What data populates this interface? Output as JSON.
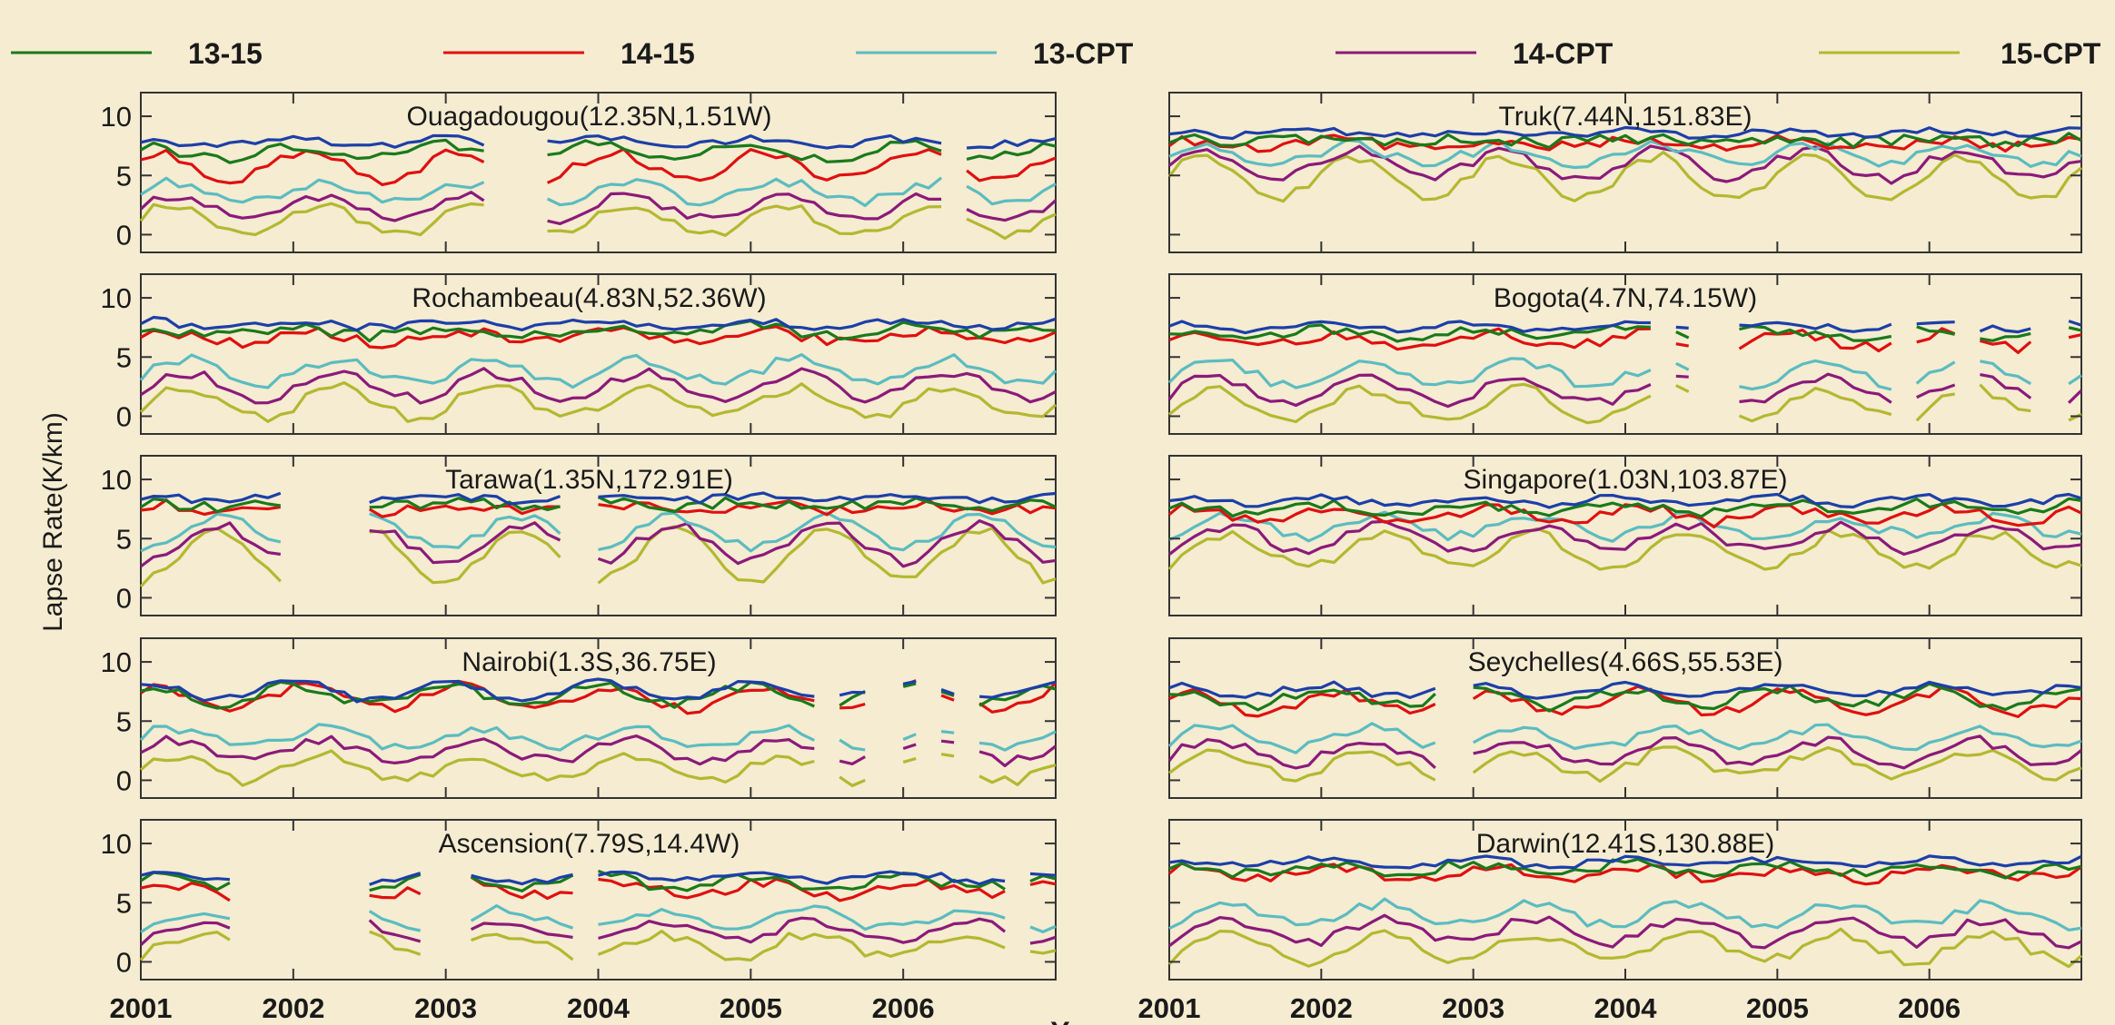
{
  "colors": {
    "13-15": "#1a7a1a",
    "14-15": "#e01010",
    "13-CPT": "#5bbcc0",
    "14-CPT": "#8c1a7a",
    "15-CPT": "#b3b830",
    "top": "#1c3fa8",
    "background": "#f5ecd1",
    "panel": "#f5ecd1"
  },
  "legend": [
    {
      "name": "13-15",
      "key": "13-15"
    },
    {
      "name": "14-15",
      "key": "14-15"
    },
    {
      "name": "13-CPT",
      "key": "13-CPT"
    },
    {
      "name": "14-CPT",
      "key": "14-CPT"
    },
    {
      "name": "15-CPT",
      "key": "15-CPT"
    }
  ],
  "chart_data": {
    "type": "line",
    "ylabel": "Lapse Rate(K/km)",
    "xlabel": "Year",
    "xlim": [
      2001,
      2007
    ],
    "ylim": [
      -1.5,
      12
    ],
    "yticks": [
      0,
      5,
      10
    ],
    "xticks": [
      2001,
      2002,
      2003,
      2004,
      2005,
      2006
    ],
    "grid": false,
    "legend_position": "top",
    "series_order": [
      "13-15",
      "14-15",
      "13-CPT",
      "14-CPT",
      "15-CPT"
    ],
    "panels": [
      {
        "title": "Ouagadougou(12.35N,1.51W)",
        "column": 0,
        "gaps": [
          [
            2003.25,
            2003.62
          ],
          [
            2006.25,
            2006.35
          ]
        ],
        "profiles": {
          "13-15": {
            "base": 7.0,
            "amp": 0.6,
            "phase": 0.0
          },
          "14-15": {
            "base": 5.8,
            "amp": 1.2,
            "phase": 0.1
          },
          "13-CPT": {
            "base": 3.6,
            "amp": 0.8,
            "phase": 0.2
          },
          "14-CPT": {
            "base": 2.3,
            "amp": 1.0,
            "phase": 0.2
          },
          "15-CPT": {
            "base": 1.2,
            "amp": 1.3,
            "phase": 0.2
          },
          "top": {
            "base": 7.8,
            "amp": 0.3,
            "phase": 0.0
          }
        }
      },
      {
        "title": "Truk(7.44N,151.83E)",
        "column": 1,
        "gaps": [],
        "profiles": {
          "13-15": {
            "base": 8.0,
            "amp": 0.2,
            "phase": 0.0
          },
          "14-15": {
            "base": 7.7,
            "amp": 0.3,
            "phase": 0.1
          },
          "13-CPT": {
            "base": 6.8,
            "amp": 0.8,
            "phase": 0.2
          },
          "14-CPT": {
            "base": 5.9,
            "amp": 1.2,
            "phase": 0.2
          },
          "15-CPT": {
            "base": 4.8,
            "amp": 1.8,
            "phase": 0.2
          },
          "top": {
            "base": 8.6,
            "amp": 0.2,
            "phase": 0.0
          }
        }
      },
      {
        "title": "Rochambeau(4.83N,52.36W)",
        "column": 0,
        "gaps": [],
        "profiles": {
          "13-15": {
            "base": 7.2,
            "amp": 0.4,
            "phase": 0.0
          },
          "14-15": {
            "base": 6.7,
            "amp": 0.5,
            "phase": 0.1
          },
          "13-CPT": {
            "base": 3.8,
            "amp": 1.0,
            "phase": 0.3
          },
          "14-CPT": {
            "base": 2.6,
            "amp": 1.1,
            "phase": 0.3
          },
          "15-CPT": {
            "base": 1.2,
            "amp": 1.3,
            "phase": 0.3
          },
          "top": {
            "base": 7.8,
            "amp": 0.3,
            "phase": 0.0
          }
        }
      },
      {
        "title": "Bogota(4.7N,74.15W)",
        "column": 1,
        "gaps": [
          [
            2004.18,
            2004.28
          ],
          [
            2004.45,
            2004.72
          ],
          [
            2005.78,
            2005.88
          ],
          [
            2006.18,
            2006.25
          ],
          [
            2006.68,
            2006.85
          ]
        ],
        "profiles": {
          "13-15": {
            "base": 7.0,
            "amp": 0.4,
            "phase": 0.0
          },
          "14-15": {
            "base": 6.4,
            "amp": 0.6,
            "phase": 0.1
          },
          "13-CPT": {
            "base": 3.6,
            "amp": 1.0,
            "phase": 0.3
          },
          "14-CPT": {
            "base": 2.2,
            "amp": 1.1,
            "phase": 0.3
          },
          "15-CPT": {
            "base": 1.0,
            "amp": 1.3,
            "phase": 0.3
          },
          "top": {
            "base": 7.6,
            "amp": 0.3,
            "phase": 0.0
          }
        }
      },
      {
        "title": "Tarawa(1.35N,172.91E)",
        "column": 0,
        "gaps": [
          [
            2001.95,
            2002.48
          ],
          [
            2003.78,
            2003.92
          ]
        ],
        "profiles": {
          "13-15": {
            "base": 7.9,
            "amp": 0.2,
            "phase": 0.0
          },
          "14-15": {
            "base": 7.6,
            "amp": 0.3,
            "phase": 0.1
          },
          "13-CPT": {
            "base": 5.6,
            "amp": 1.2,
            "phase": 0.5
          },
          "14-CPT": {
            "base": 4.6,
            "amp": 1.5,
            "phase": 0.5
          },
          "15-CPT": {
            "base": 3.6,
            "amp": 2.2,
            "phase": 0.5
          },
          "top": {
            "base": 8.4,
            "amp": 0.2,
            "phase": 0.0
          }
        }
      },
      {
        "title": "Singapore(1.03N,103.87E)",
        "column": 1,
        "gaps": [],
        "profiles": {
          "13-15": {
            "base": 7.6,
            "amp": 0.4,
            "phase": 0.0
          },
          "14-15": {
            "base": 7.0,
            "amp": 0.6,
            "phase": 0.1
          },
          "13-CPT": {
            "base": 6.0,
            "amp": 0.8,
            "phase": 0.4
          },
          "14-CPT": {
            "base": 5.0,
            "amp": 1.1,
            "phase": 0.4
          },
          "15-CPT": {
            "base": 4.0,
            "amp": 1.4,
            "phase": 0.4
          },
          "top": {
            "base": 8.2,
            "amp": 0.3,
            "phase": 0.0
          }
        }
      },
      {
        "title": "Nairobi(1.3S,36.75E)",
        "column": 0,
        "gaps": [
          [
            2005.45,
            2005.55
          ],
          [
            2005.78,
            2005.98
          ],
          [
            2006.1,
            2006.22
          ],
          [
            2006.35,
            2006.48
          ]
        ],
        "profiles": {
          "13-15": {
            "base": 7.2,
            "amp": 0.8,
            "phase": 0.0
          },
          "14-15": {
            "base": 7.0,
            "amp": 1.0,
            "phase": 0.1
          },
          "13-CPT": {
            "base": 3.6,
            "amp": 0.8,
            "phase": 0.2
          },
          "14-CPT": {
            "base": 2.5,
            "amp": 0.9,
            "phase": 0.2
          },
          "15-CPT": {
            "base": 1.0,
            "amp": 1.1,
            "phase": 0.2
          },
          "top": {
            "base": 7.6,
            "amp": 0.8,
            "phase": 0.0
          }
        }
      },
      {
        "title": "Seychelles(4.66S,55.53E)",
        "column": 1,
        "gaps": [
          [
            2002.75,
            2002.98
          ]
        ],
        "profiles": {
          "13-15": {
            "base": 7.0,
            "amp": 0.7,
            "phase": 0.0
          },
          "14-15": {
            "base": 6.6,
            "amp": 0.9,
            "phase": 0.1
          },
          "13-CPT": {
            "base": 3.6,
            "amp": 0.9,
            "phase": 0.3
          },
          "14-CPT": {
            "base": 2.4,
            "amp": 1.0,
            "phase": 0.3
          },
          "15-CPT": {
            "base": 1.4,
            "amp": 1.1,
            "phase": 0.3
          },
          "top": {
            "base": 7.6,
            "amp": 0.5,
            "phase": 0.0
          }
        }
      },
      {
        "title": "Ascension(7.79S,14.4W)",
        "column": 0,
        "gaps": [
          [
            2001.6,
            2002.45
          ],
          [
            2002.85,
            2002.92
          ],
          [
            2003.02,
            2003.1
          ],
          [
            2003.85,
            2003.95
          ],
          [
            2006.7,
            2006.78
          ]
        ],
        "profiles": {
          "13-15": {
            "base": 6.8,
            "amp": 0.5,
            "phase": 0.0
          },
          "14-15": {
            "base": 6.2,
            "amp": 0.6,
            "phase": 0.1
          },
          "13-CPT": {
            "base": 3.6,
            "amp": 0.8,
            "phase": 0.4
          },
          "14-CPT": {
            "base": 2.6,
            "amp": 0.9,
            "phase": 0.4
          },
          "15-CPT": {
            "base": 1.4,
            "amp": 1.0,
            "phase": 0.4
          },
          "top": {
            "base": 7.2,
            "amp": 0.4,
            "phase": 0.0
          }
        }
      },
      {
        "title": "Darwin(12.41S,130.88E)",
        "column": 1,
        "gaps": [],
        "profiles": {
          "13-15": {
            "base": 7.9,
            "amp": 0.4,
            "phase": 0.0
          },
          "14-15": {
            "base": 7.5,
            "amp": 0.5,
            "phase": 0.1
          },
          "13-CPT": {
            "base": 4.0,
            "amp": 0.9,
            "phase": 0.4
          },
          "14-CPT": {
            "base": 2.6,
            "amp": 1.0,
            "phase": 0.4
          },
          "15-CPT": {
            "base": 1.2,
            "amp": 1.2,
            "phase": 0.4
          },
          "top": {
            "base": 8.4,
            "amp": 0.3,
            "phase": 0.0
          }
        }
      }
    ]
  }
}
